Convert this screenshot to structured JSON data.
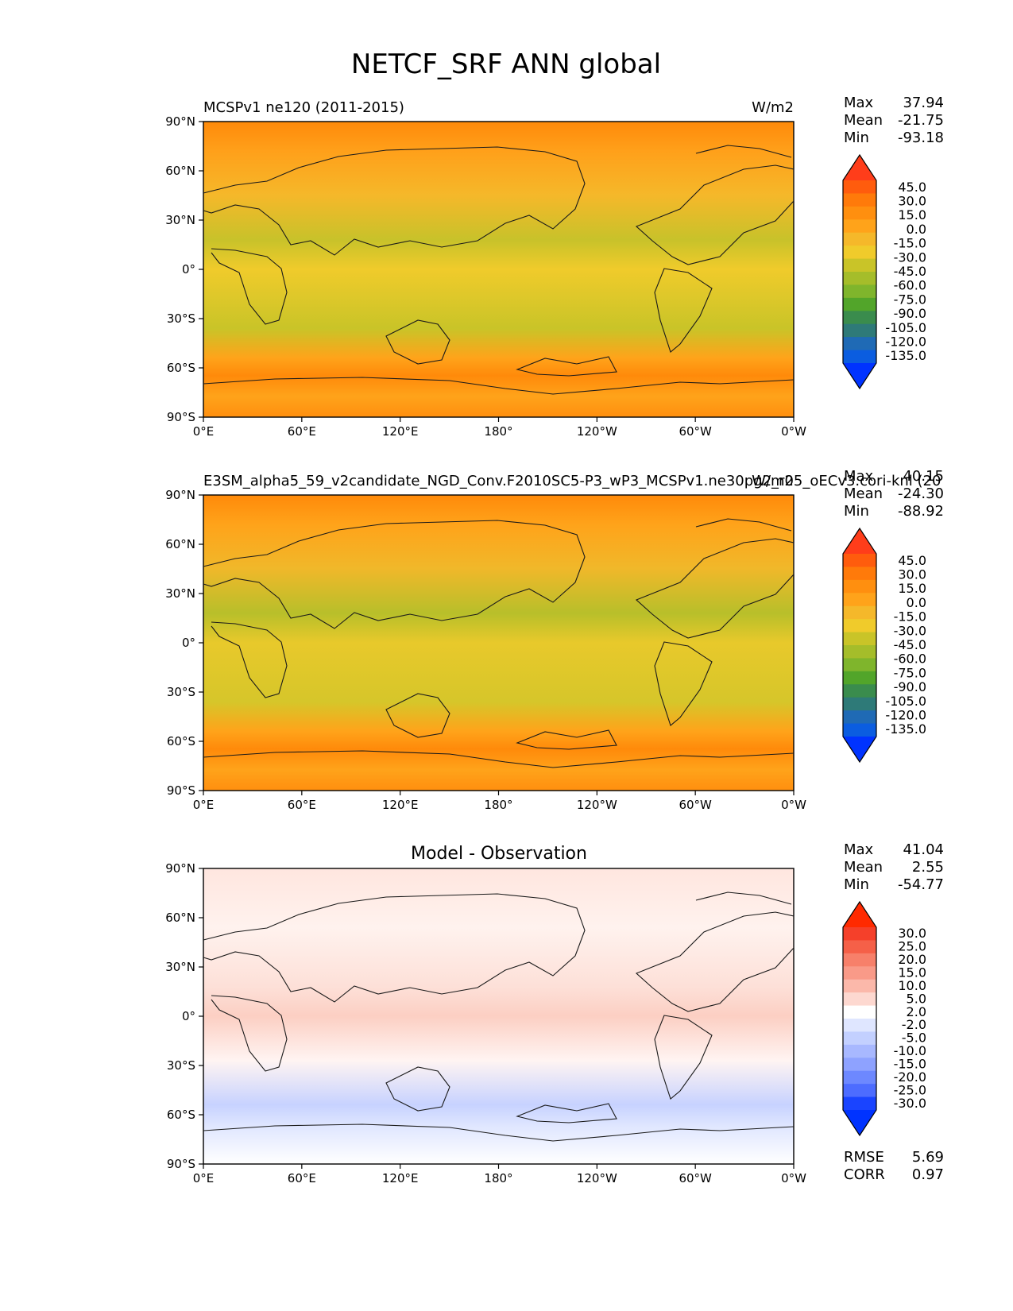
{
  "figure": {
    "title": "NETCF_SRF ANN global"
  },
  "axes": {
    "lat_ticks": [
      "90°N",
      "60°N",
      "30°N",
      "0°",
      "30°S",
      "60°S",
      "90°S"
    ],
    "lon_ticks": [
      "0°E",
      "60°E",
      "120°E",
      "180°",
      "120°W",
      "60°W",
      "0°W"
    ]
  },
  "chart_data": [
    {
      "type": "heatmap",
      "title_left": "MCSPv1 ne120 (2011-2015)",
      "title_center": "",
      "units": "W/m2",
      "stats": {
        "max_label": "Max",
        "max": "37.94",
        "mean_label": "Mean",
        "mean": "-21.75",
        "min_label": "Min",
        "min": "-93.18"
      },
      "colorbar": {
        "labels": [
          "45.0",
          "30.0",
          "15.0",
          "0.0",
          "-15.0",
          "-30.0",
          "-45.0",
          "-60.0",
          "-75.0",
          "-90.0",
          "-105.0",
          "-120.0",
          "-135.0"
        ],
        "colors": [
          "#ff3d1a",
          "#ff5c0d",
          "#ff7a0a",
          "#ff8f0f",
          "#ffa31a",
          "#f5b82a",
          "#f0cb2b",
          "#c9c428",
          "#a5bd2a",
          "#7fb52c",
          "#52a52a",
          "#3a8c4d",
          "#2e7a78",
          "#1f6ab5",
          "#0b5de0",
          "#0033ff"
        ]
      }
    },
    {
      "type": "heatmap",
      "title_left": "E3SM_alpha5_59_v2candidate_NGD_Conv.F2010SC5-P3_wP3_MCSPv1.ne30pg2_r05_oECv3.cori-knl (20",
      "title_center": "",
      "units": "W/m2",
      "stats": {
        "max_label": "Max",
        "max": "40.15",
        "mean_label": "Mean",
        "mean": "-24.30",
        "min_label": "Min",
        "min": "-88.92"
      },
      "colorbar": {
        "labels": [
          "45.0",
          "30.0",
          "15.0",
          "0.0",
          "-15.0",
          "-30.0",
          "-45.0",
          "-60.0",
          "-75.0",
          "-90.0",
          "-105.0",
          "-120.0",
          "-135.0"
        ],
        "colors": [
          "#ff3d1a",
          "#ff5c0d",
          "#ff7a0a",
          "#ff8f0f",
          "#ffa31a",
          "#f5b82a",
          "#f0cb2b",
          "#c9c428",
          "#a5bd2a",
          "#7fb52c",
          "#52a52a",
          "#3a8c4d",
          "#2e7a78",
          "#1f6ab5",
          "#0b5de0",
          "#0033ff"
        ]
      }
    },
    {
      "type": "heatmap",
      "title_left": "",
      "title_center": "Model - Observation",
      "units": "",
      "stats": {
        "max_label": "Max",
        "max": "41.04",
        "mean_label": "Mean",
        "mean": "2.55",
        "min_label": "Min",
        "min": "-54.77"
      },
      "metrics": {
        "rmse_label": "RMSE",
        "rmse": "5.69",
        "corr_label": "CORR",
        "corr": "0.97"
      },
      "colorbar": {
        "labels": [
          "30.0",
          "25.0",
          "20.0",
          "15.0",
          "10.0",
          "5.0",
          "2.0",
          "-2.0",
          "-5.0",
          "-10.0",
          "-15.0",
          "-20.0",
          "-25.0",
          "-30.0"
        ],
        "colors": [
          "#ff2a00",
          "#f5402a",
          "#f56048",
          "#f7806a",
          "#f99a88",
          "#fbb8aa",
          "#fdd8d0",
          "#ffffff",
          "#dfe6ff",
          "#c3d0ff",
          "#a8b8ff",
          "#8ea2ff",
          "#6d88ff",
          "#4d6cff",
          "#1a44ff",
          "#0033ff"
        ]
      }
    }
  ]
}
